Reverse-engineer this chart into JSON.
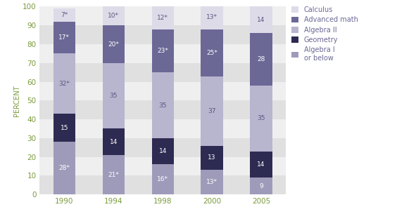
{
  "years": [
    "1990",
    "1994",
    "1998",
    "2000",
    "2005"
  ],
  "categories": [
    "Algebra I\nor below",
    "Geometry",
    "Algebra II",
    "Advanced math",
    "Calculus"
  ],
  "values": {
    "Algebra I\nor below": [
      28,
      21,
      16,
      13,
      9
    ],
    "Geometry": [
      15,
      14,
      14,
      13,
      14
    ],
    "Algebra II": [
      32,
      35,
      35,
      37,
      35
    ],
    "Advanced math": [
      17,
      20,
      23,
      25,
      28
    ],
    "Calculus": [
      7,
      10,
      12,
      13,
      14
    ]
  },
  "labels": {
    "Algebra I\nor below": [
      "28*",
      "21*",
      "16*",
      "13*",
      "9"
    ],
    "Geometry": [
      "15",
      "14",
      "14",
      "13",
      "14"
    ],
    "Algebra II": [
      "32*",
      "35",
      "35",
      "37",
      "35"
    ],
    "Advanced math": [
      "17*",
      "20*",
      "23*",
      "25*",
      "28"
    ],
    "Calculus": [
      "7*",
      "10*",
      "12*",
      "13*",
      "14"
    ]
  },
  "colors": {
    "Algebra I\nor below": "#9e9bba",
    "Geometry": "#2e2b52",
    "Algebra II": "#b8b5cf",
    "Advanced math": "#6b6896",
    "Calculus": "#dddbe8"
  },
  "text_colors": {
    "Algebra I\nor below": "#ffffff",
    "Geometry": "#ffffff",
    "Algebra II": "#5a5780",
    "Advanced math": "#ffffff",
    "Calculus": "#5a5780"
  },
  "bg_bands": [
    [
      0,
      10,
      "#e0e0e0"
    ],
    [
      10,
      20,
      "#efefef"
    ],
    [
      20,
      30,
      "#e0e0e0"
    ],
    [
      30,
      40,
      "#efefef"
    ],
    [
      40,
      50,
      "#e0e0e0"
    ],
    [
      50,
      60,
      "#efefef"
    ],
    [
      60,
      70,
      "#e0e0e0"
    ],
    [
      70,
      80,
      "#efefef"
    ],
    [
      80,
      90,
      "#e0e0e0"
    ],
    [
      90,
      100,
      "#efefef"
    ]
  ],
  "ylabel": "PERCENT",
  "ylim": [
    0,
    100
  ],
  "bar_width": 0.45,
  "figsize": [
    5.64,
    3.15
  ],
  "dpi": 100,
  "legend_order": [
    "Calculus",
    "Advanced math",
    "Algebra II",
    "Geometry",
    "Algebra I\nor below"
  ],
  "label_fontsize": 6.5,
  "axis_label_fontsize": 7,
  "tick_fontsize": 7.5,
  "legend_fontsize": 7,
  "tick_color": "#7a9a3a",
  "ylabel_color": "#7a9a3a"
}
